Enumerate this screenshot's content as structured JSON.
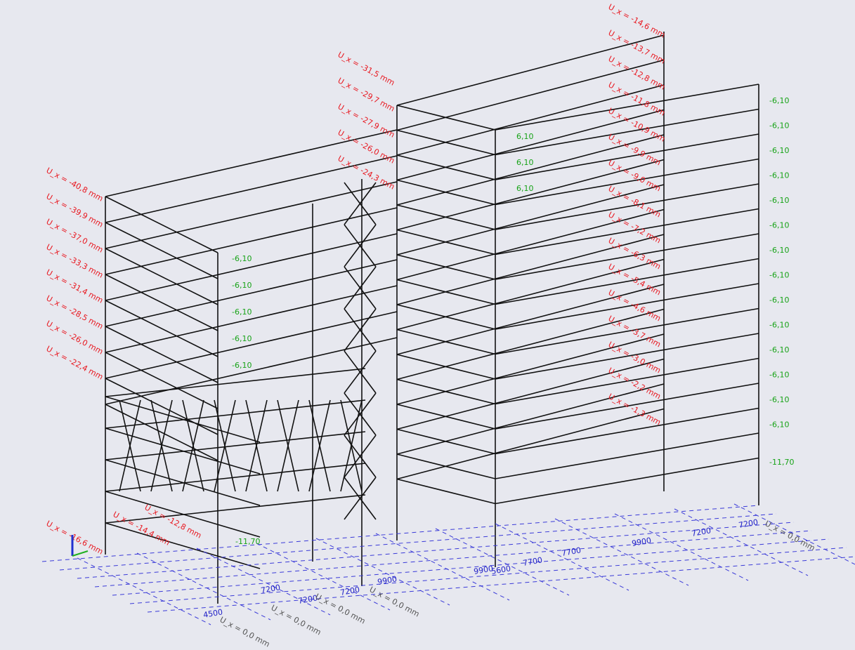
{
  "displacement_labels": {
    "left_block": [
      "U_x = -40,8 mm",
      "U_x = -39,9 mm",
      "U_x = -37,0 mm",
      "U_x = -33,3 mm",
      "U_x = -31,4 mm",
      "U_x = -28,5 mm",
      "U_x = -26,0 mm",
      "U_x = -22,4 mm",
      "U_x = -16,6 mm",
      "U_x = -14,4 mm",
      "U_x = -12,8 mm"
    ],
    "middle_tower": [
      "U_x = -31,5 mm",
      "U_x = -29,7 mm",
      "U_x = -27,9 mm",
      "U_x = -26,0 mm",
      "U_x = -24,3 mm"
    ],
    "right_tower": [
      "U_x = -14,6 mm",
      "U_x = -13,7 mm",
      "U_x = -12,8 mm",
      "U_x = -11,8 mm",
      "U_x = -10,9 mm",
      "U_x = -9,9 mm",
      "U_x = -9,0 mm",
      "U_x = -8,1 mm",
      "U_x = -7,2 mm",
      "U_x = -6,3 mm",
      "U_x = -5,4 mm",
      "U_x = -4,6 mm",
      "U_x = -3,7 mm",
      "U_x = -3,0 mm",
      "U_x = -2,2 mm",
      "U_x = -1,3 mm"
    ]
  },
  "level_labels": {
    "right": [
      "-6,10",
      "-6,10",
      "-6,10",
      "-6,10",
      "-6,10",
      "-6,10",
      "-6,10",
      "-6,10",
      "-6,10",
      "-6,10",
      "-6,10",
      "-6,10",
      "-6,10",
      "-6,10",
      "-11,70"
    ],
    "left": [
      "-6,10",
      "-6,10",
      "-6,10",
      "-6,10",
      "-6,10",
      "-11,70"
    ],
    "middle": [
      "6,10",
      "6,10",
      "6,10"
    ]
  },
  "grid_dimensions": [
    "4500",
    "7200",
    "7200",
    "7200",
    "9900",
    "9900",
    "5600",
    "7700",
    "7700",
    "9900",
    "7200",
    "7200"
  ],
  "support_labels": [
    "U_x = 0,0 mm",
    "U_x = 0,0 mm",
    "U_x = 0,0 mm",
    "U_x = 0,0 mm",
    "U_x = 0,0 mm"
  ]
}
